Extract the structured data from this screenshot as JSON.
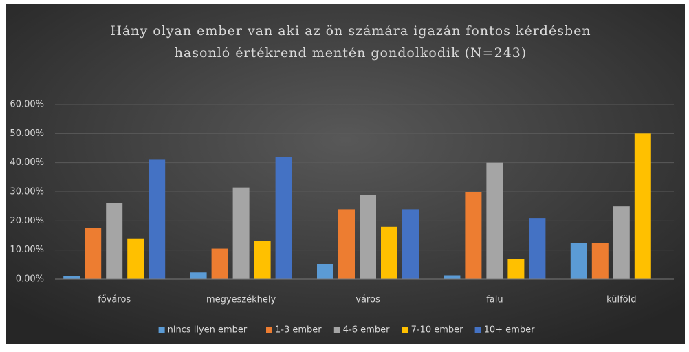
{
  "chart_data": {
    "type": "bar",
    "title": [
      "Hány olyan ember van aki az ön számára igazán fontos kérdésben",
      "hasonló értékrend mentén gondolkodik (N=243)"
    ],
    "categories": [
      "főváros",
      "megyeszékhely",
      "város",
      "falu",
      "külföld"
    ],
    "series": [
      {
        "name": "nincs ilyen ember",
        "color": "#5b9bd5",
        "values": [
          1,
          2.3,
          5.2,
          1.3,
          12.3
        ]
      },
      {
        "name": "1-3 ember",
        "color": "#ed7d31",
        "values": [
          17.5,
          10.5,
          24,
          30,
          12.3
        ]
      },
      {
        "name": "4-6 ember",
        "color": "#a5a5a5",
        "values": [
          26,
          31.5,
          29,
          40,
          25
        ]
      },
      {
        "name": "7-10 ember",
        "color": "#ffc000",
        "values": [
          14,
          13,
          18,
          7,
          50
        ]
      },
      {
        "name": "10+ ember",
        "color": "#4472c4",
        "values": [
          41,
          42,
          24,
          21,
          0
        ]
      }
    ],
    "ylim": [
      0,
      60
    ],
    "yticks": [
      {
        "value": 0,
        "label": "0.00%"
      },
      {
        "value": 10,
        "label": "10.00%"
      },
      {
        "value": 20,
        "label": "20.00%"
      },
      {
        "value": 30,
        "label": "30.00%"
      },
      {
        "value": 40,
        "label": "40.00%"
      },
      {
        "value": 50,
        "label": "50.00%"
      },
      {
        "value": 60,
        "label": "60.00%"
      }
    ],
    "grid": true
  }
}
